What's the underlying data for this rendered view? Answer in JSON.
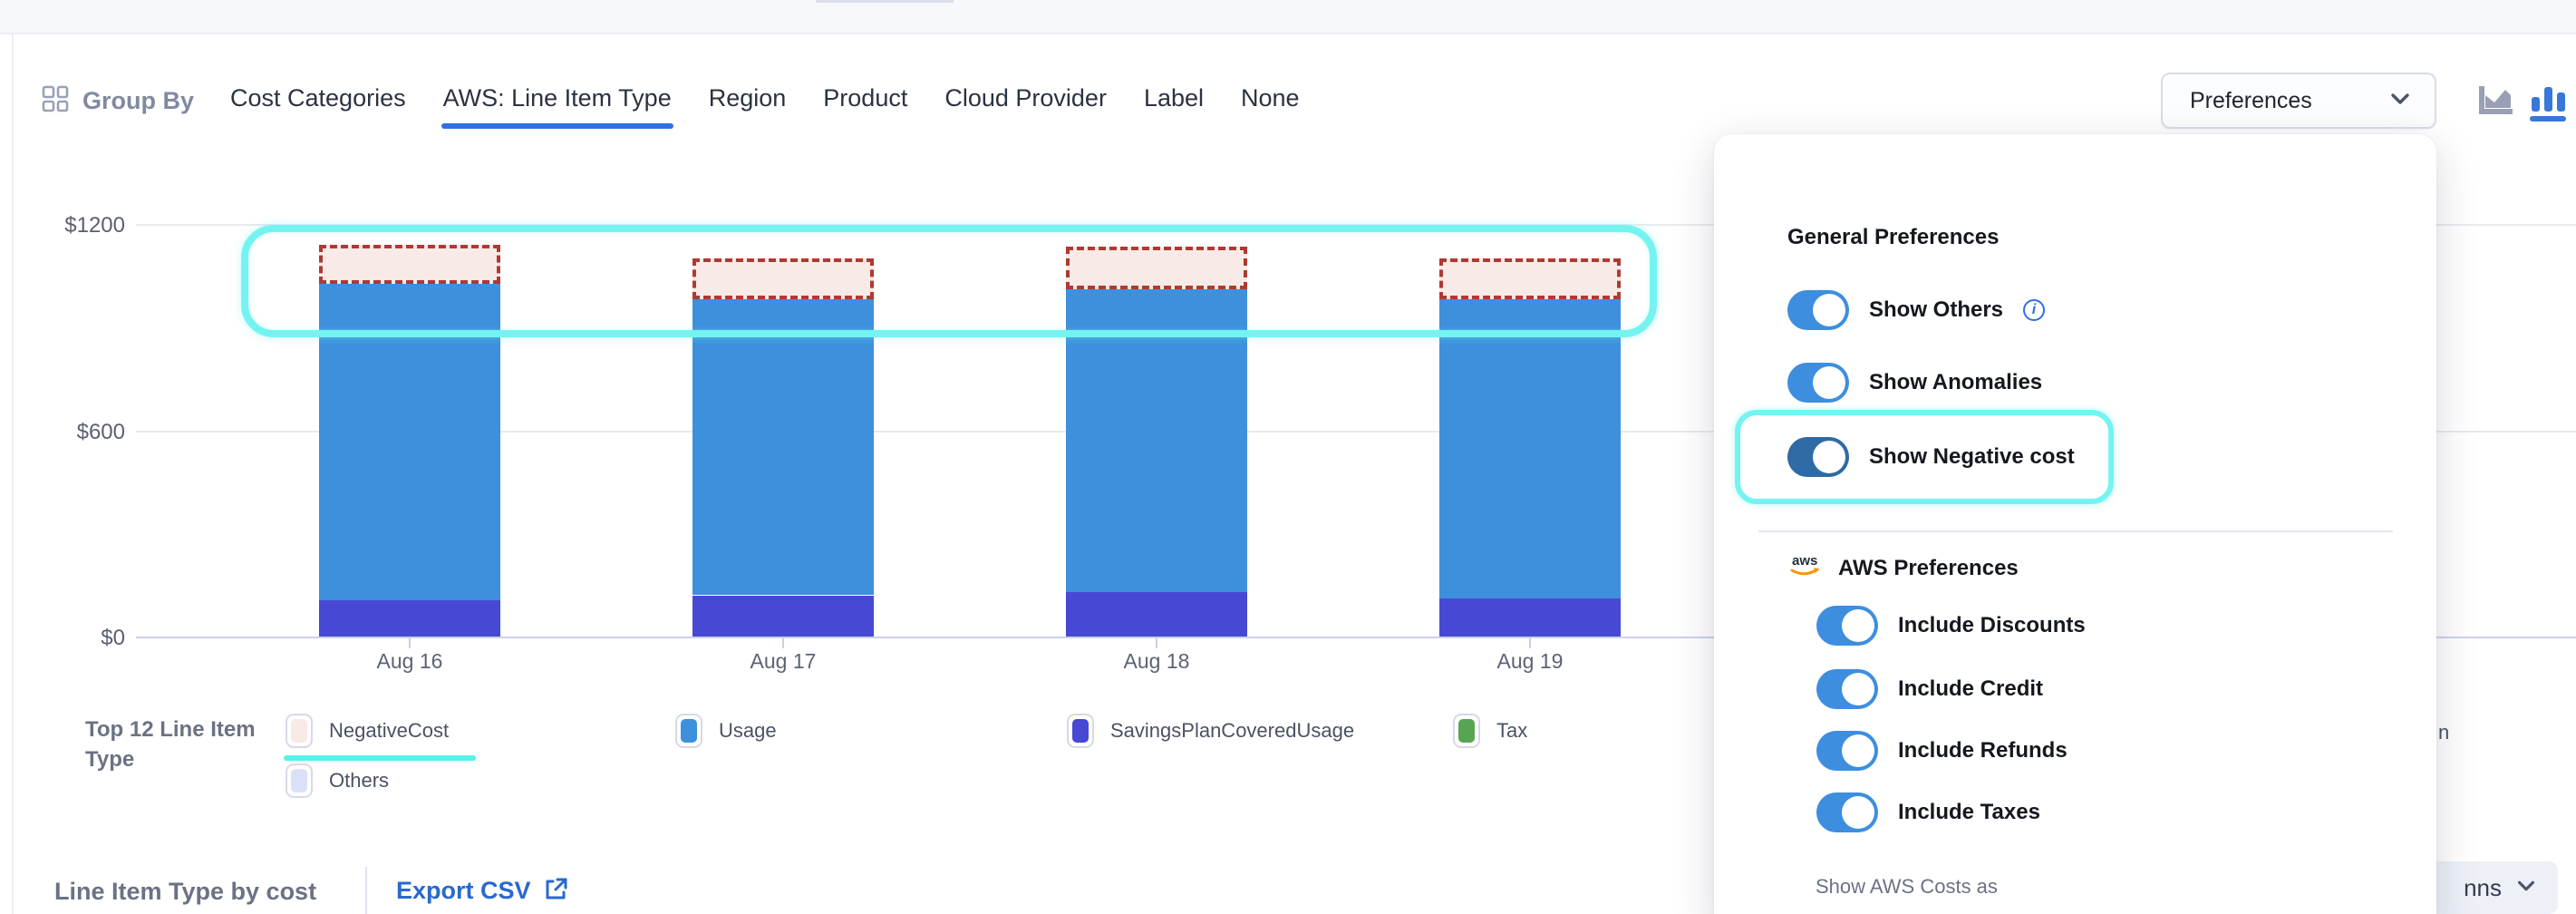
{
  "toolbar": {
    "group_by": "Group By",
    "tabs": [
      "Cost Categories",
      "AWS: Line Item Type",
      "Region",
      "Product",
      "Cloud Provider",
      "Label",
      "None"
    ],
    "active_tab": "AWS: Line Item Type",
    "preferences_button": "Preferences"
  },
  "chart_data": {
    "type": "bar",
    "stacked": true,
    "categories": [
      "Aug 16",
      "Aug 17",
      "Aug 18",
      "Aug 19"
    ],
    "series": [
      {
        "name": "SavingsPlanCoveredUsage",
        "color": "#4749d4",
        "values": [
          105,
          120,
          130,
          110
        ]
      },
      {
        "name": "Usage",
        "color": "#3e90dd",
        "values": [
          920,
          860,
          880,
          870
        ]
      },
      {
        "name": "Tax",
        "color": "#57a553",
        "values": [
          0,
          0,
          0,
          0
        ]
      },
      {
        "name": "Others",
        "color": "#dbe0f9",
        "values": [
          0,
          0,
          0,
          0
        ]
      },
      {
        "name": "NegativeCost",
        "color": "#ae3a32",
        "fill": "#f8eae7",
        "display": "dashed_box",
        "values": [
          115,
          120,
          125,
          120
        ]
      }
    ],
    "y_ticks": [
      "$0",
      "$600",
      "$1200"
    ],
    "ylim": [
      0,
      1200
    ],
    "grid": true,
    "legend_position": "bottom"
  },
  "legend": {
    "title": "Top 12 Line Item Type",
    "items": [
      {
        "label": "NegativeCost",
        "swatch": "#f8eae7",
        "highlighted": true
      },
      {
        "label": "Usage",
        "swatch": "#3e90dd",
        "highlighted": false
      },
      {
        "label": "SavingsPlanCoveredUsage",
        "swatch": "#4749d4",
        "highlighted": false
      },
      {
        "label": "Tax",
        "swatch": "#57a553",
        "highlighted": false
      },
      {
        "label": "Others",
        "swatch": "#dbe0f9",
        "highlighted": false
      }
    ],
    "partial_item_text": "n"
  },
  "footer": {
    "title": "Line Item Type by cost",
    "export_csv": "Export CSV",
    "columns_button_partial": "nns"
  },
  "preferences_panel": {
    "general_heading": "General Preferences",
    "general_toggles": [
      {
        "label": "Show Others",
        "on": true,
        "info": true,
        "highlighted": false
      },
      {
        "label": "Show Anomalies",
        "on": true,
        "info": false,
        "highlighted": false
      },
      {
        "label": "Show Negative cost",
        "on": true,
        "info": false,
        "highlighted": true
      }
    ],
    "aws_heading": "AWS Preferences",
    "aws_toggles": [
      {
        "label": "Include Discounts",
        "on": true
      },
      {
        "label": "Include Credit",
        "on": true
      },
      {
        "label": "Include Refunds",
        "on": true
      },
      {
        "label": "Include Taxes",
        "on": true
      }
    ],
    "show_costs_label": "Show AWS Costs as"
  },
  "colors": {
    "accent_blue": "#2e6fe2",
    "toggle_blue": "#3d8edf",
    "toggle_dark_blue": "#2e6ba5",
    "annotation_cyan": "#74f4f1",
    "negative_dash": "#ae3a32",
    "negative_fill": "#f8eae7",
    "export_link": "#2968cf"
  }
}
